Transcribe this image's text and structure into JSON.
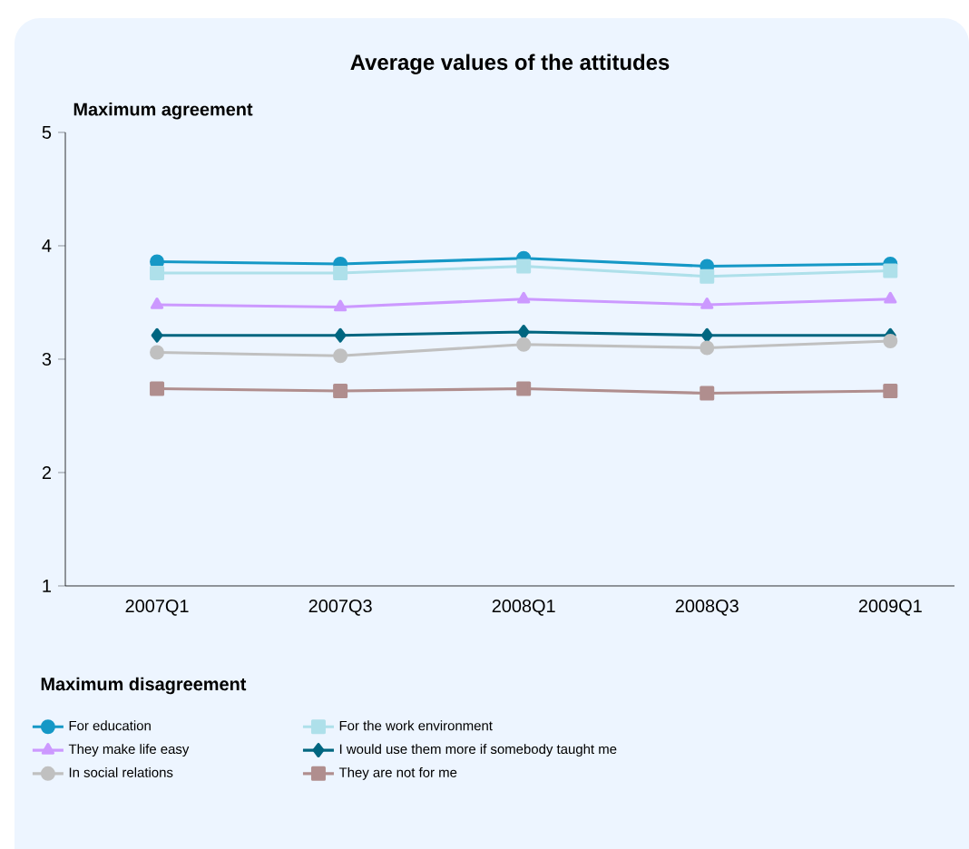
{
  "chart_data": {
    "type": "line",
    "title": "Average values of the attitudes",
    "categories": [
      "2007Q1",
      "2007Q3",
      "2008Q1",
      "2008Q3",
      "2009Q1"
    ],
    "series": [
      {
        "name": "For education",
        "color": "#1598c6",
        "marker": "circle",
        "values": [
          3.86,
          3.84,
          3.89,
          3.82,
          3.84
        ]
      },
      {
        "name": "For the work environment",
        "color": "#aee0ea",
        "marker": "square",
        "values": [
          3.76,
          3.76,
          3.82,
          3.73,
          3.78
        ]
      },
      {
        "name": "They make life easy",
        "color": "#cc99ff",
        "marker": "triangle",
        "values": [
          3.48,
          3.46,
          3.53,
          3.48,
          3.53
        ]
      },
      {
        "name": "I would use them more if somebody taught me",
        "color": "#006680",
        "marker": "diamond",
        "values": [
          3.21,
          3.21,
          3.24,
          3.21,
          3.21
        ]
      },
      {
        "name": "In social relations",
        "color": "#c0c0c0",
        "marker": "circle",
        "values": [
          3.06,
          3.03,
          3.13,
          3.1,
          3.16
        ]
      },
      {
        "name": "They are not for me",
        "color": "#b08e8e",
        "marker": "square",
        "values": [
          2.74,
          2.72,
          2.74,
          2.7,
          2.72
        ]
      }
    ],
    "ylim": [
      1,
      5
    ],
    "yticks": [
      1,
      2,
      3,
      4,
      5
    ],
    "grid": false,
    "legend": "bottom",
    "line_style": "solid",
    "annotations": [
      "Maximum agreement",
      "Maximum disagreement"
    ]
  }
}
